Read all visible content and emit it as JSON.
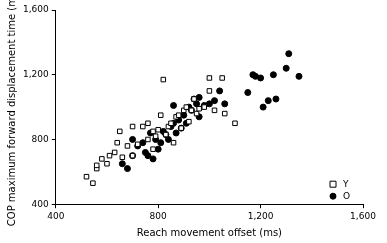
{
  "chart_data": {
    "type": "scatter",
    "x_label": "Reach movement offset (ms)",
    "y_label": "COP maximum forward displacement time (ms)",
    "xlim": [
      400,
      1600
    ],
    "xticks": [
      400,
      800,
      1200,
      1600
    ],
    "ylim": [
      400,
      1600
    ],
    "yticks": [
      400,
      800,
      1200,
      1600
    ],
    "grid": false,
    "legend": "lower right",
    "series": [
      {
        "name": "Y",
        "color": "#000000",
        "marker": "square_open",
        "x": [
          520,
          545,
          560,
          580,
          600,
          610,
          630,
          650,
          660,
          680,
          700,
          720,
          740,
          760,
          760,
          780,
          790,
          800,
          810,
          820,
          830,
          840,
          850,
          860,
          870,
          880,
          890,
          900,
          910,
          920,
          930,
          940,
          950,
          960,
          980,
          1000,
          1020,
          1050,
          1060,
          1100,
          700,
          640,
          780,
          560,
          1000
        ],
        "values": [
          570,
          530,
          620,
          680,
          650,
          700,
          720,
          850,
          690,
          760,
          700,
          770,
          880,
          900,
          800,
          740,
          820,
          860,
          950,
          1170,
          830,
          880,
          900,
          780,
          940,
          950,
          870,
          980,
          1000,
          910,
          980,
          1050,
          960,
          990,
          1000,
          1100,
          980,
          1180,
          960,
          900,
          880,
          780,
          850,
          640,
          1180
        ]
      },
      {
        "name": "O",
        "color": "#000000",
        "marker": "circle",
        "x": [
          660,
          680,
          700,
          720,
          740,
          750,
          760,
          770,
          780,
          790,
          800,
          810,
          820,
          830,
          840,
          850,
          860,
          870,
          880,
          890,
          900,
          910,
          920,
          930,
          940,
          950,
          960,
          980,
          1000,
          1020,
          1040,
          1060,
          1150,
          1170,
          1180,
          1200,
          1210,
          1230,
          1250,
          1260,
          1300,
          1310,
          1350,
          960,
          700,
          860
        ],
        "values": [
          650,
          620,
          700,
          760,
          780,
          720,
          700,
          840,
          680,
          800,
          740,
          780,
          850,
          830,
          800,
          880,
          900,
          840,
          920,
          870,
          950,
          900,
          1000,
          980,
          1050,
          1020,
          940,
          1010,
          1020,
          1040,
          1100,
          1020,
          1090,
          1200,
          1190,
          1180,
          1000,
          1040,
          1200,
          1050,
          1240,
          1330,
          1190,
          1060,
          800,
          1010
        ]
      }
    ]
  }
}
